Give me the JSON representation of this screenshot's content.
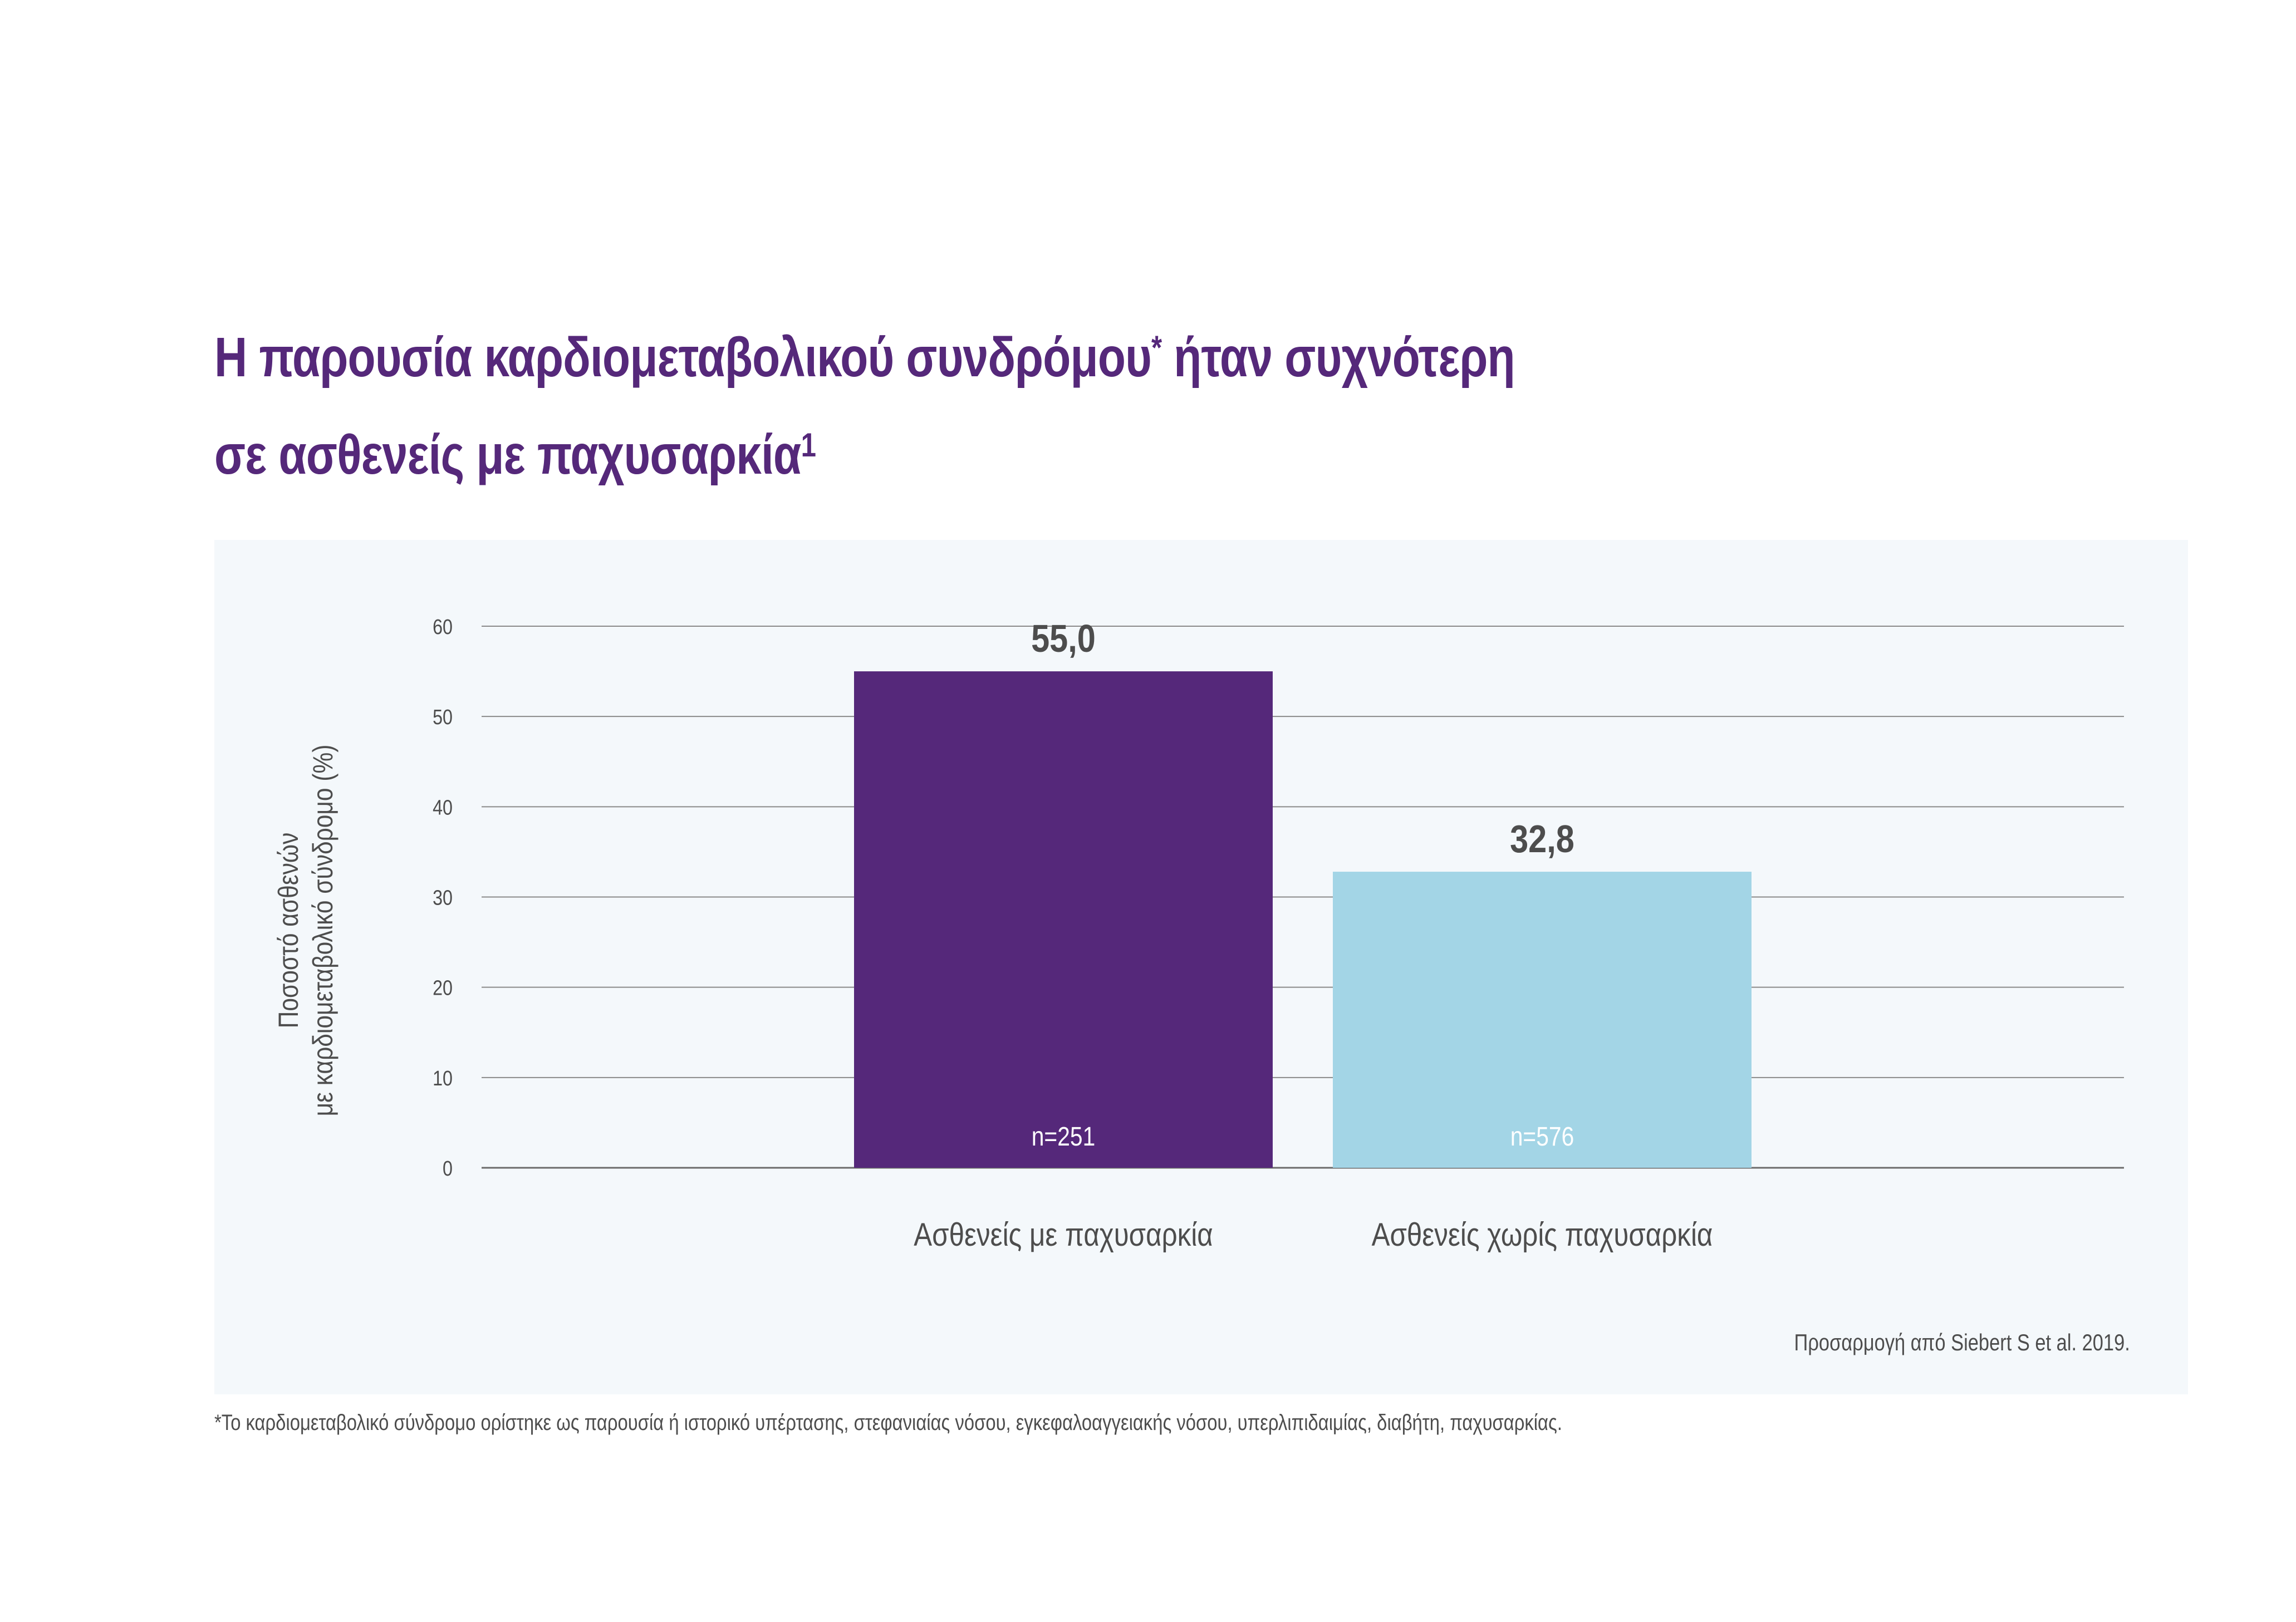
{
  "title": {
    "line1_text": "Η παρουσία καρδιομεταβολικού συνδρόμου",
    "line1_mark": "*",
    "line1_end": " ήταν συχνότερη",
    "line2_text": "σε ασθενείς με παχυσαρκία",
    "line2_mark": "1"
  },
  "chart_data": {
    "type": "bar",
    "categories": [
      "Ασθενείς με παχυσαρκία",
      "Ασθενείς χωρίς παχυσαρκία"
    ],
    "values": [
      55.0,
      32.8
    ],
    "value_labels": [
      "55,0",
      "32,8"
    ],
    "n_labels": [
      "n=251",
      "n=576"
    ],
    "colors": [
      "#55287a",
      "#a3d5e6"
    ],
    "ylabel_line1": "Ποσοστό ασθενών",
    "ylabel_line2": "με καρδιομεταβολικό σύνδρομο (%)",
    "ylim": [
      0,
      60
    ],
    "yticks": [
      0,
      10,
      20,
      30,
      40,
      50,
      60
    ],
    "grid": true
  },
  "source_note": "Προσαρμογή από Siebert S et al. 2019.",
  "footnote": "*Το καρδιομεταβολικό σύνδρομο ορίστηκε ως παρουσία ή ιστορικό υπέρτασης, στεφανιαίας νόσου, εγκεφαλοαγγειακής νόσου, υπερλιπιδαιμίας, διαβήτη, παχυσαρκίας."
}
